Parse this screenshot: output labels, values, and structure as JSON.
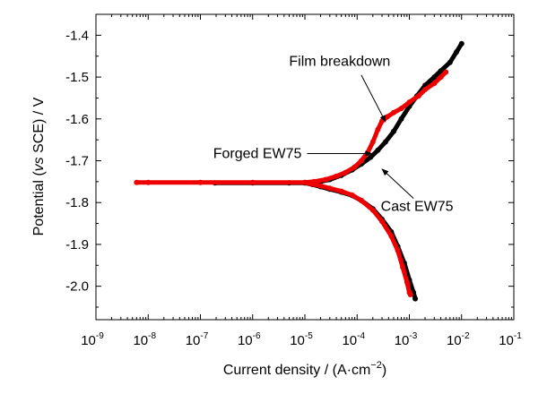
{
  "chart_data": {
    "type": "line",
    "x_scale": "log",
    "xlabel_main": "Current density / (A·cm",
    "xlabel_sup": "−2",
    "xlabel_end": ")",
    "ylabel_pre": "Potential (",
    "ylabel_ital": "vs",
    "ylabel_post": " SCE) / V",
    "xlim": [
      1e-09,
      0.1
    ],
    "ylim": [
      -2.08,
      -1.35
    ],
    "x_ticks": [
      {
        "exp": -9,
        "base": "10",
        "sup": "-9"
      },
      {
        "exp": -8,
        "base": "10",
        "sup": "-8"
      },
      {
        "exp": -7,
        "base": "10",
        "sup": "-7"
      },
      {
        "exp": -6,
        "base": "10",
        "sup": "-6"
      },
      {
        "exp": -5,
        "base": "10",
        "sup": "-5"
      },
      {
        "exp": -4,
        "base": "10",
        "sup": "-4"
      },
      {
        "exp": -3,
        "base": "10",
        "sup": "-3"
      },
      {
        "exp": -2,
        "base": "10",
        "sup": "-2"
      },
      {
        "exp": -1,
        "base": "10",
        "sup": "-1"
      }
    ],
    "y_ticks": [
      {
        "value": -1.4,
        "label": "-1.4"
      },
      {
        "value": -1.5,
        "label": "-1.5"
      },
      {
        "value": -1.6,
        "label": "-1.6"
      },
      {
        "value": -1.7,
        "label": "-1.7"
      },
      {
        "value": -1.8,
        "label": "-1.8"
      },
      {
        "value": -1.9,
        "label": "-1.9"
      },
      {
        "value": -2.0,
        "label": "-2.0"
      }
    ],
    "series": [
      {
        "name": "Cast EW75",
        "color": "#000000",
        "points": [
          [
            1.9e-07,
            -1.753
          ],
          [
            1e-06,
            -1.753
          ],
          [
            5e-06,
            -1.753
          ],
          [
            1e-05,
            -1.753
          ],
          [
            1.4e-05,
            -1.752
          ],
          [
            2e-05,
            -1.75
          ],
          [
            3e-05,
            -1.745
          ],
          [
            5e-05,
            -1.735
          ],
          [
            8e-05,
            -1.722
          ],
          [
            0.00012,
            -1.708
          ],
          [
            0.00018,
            -1.692
          ],
          [
            0.00025,
            -1.675
          ],
          [
            0.00035,
            -1.655
          ],
          [
            0.0005,
            -1.63
          ],
          [
            0.0007,
            -1.6
          ],
          [
            0.001,
            -1.57
          ],
          [
            0.0014,
            -1.545
          ],
          [
            0.002,
            -1.52
          ],
          [
            0.003,
            -1.5
          ],
          [
            0.004,
            -1.485
          ],
          [
            0.006,
            -1.465
          ],
          [
            0.008,
            -1.44
          ],
          [
            0.01,
            -1.42
          ]
        ],
        "cathodic_points": [
          [
            1e-05,
            -1.753
          ],
          [
            1.4e-05,
            -1.757
          ],
          [
            2e-05,
            -1.762
          ],
          [
            3e-05,
            -1.768
          ],
          [
            5e-05,
            -1.775
          ],
          [
            8e-05,
            -1.783
          ],
          [
            0.00012,
            -1.795
          ],
          [
            0.0002,
            -1.815
          ],
          [
            0.0003,
            -1.84
          ],
          [
            0.00045,
            -1.87
          ],
          [
            0.0006,
            -1.905
          ],
          [
            0.0008,
            -1.945
          ],
          [
            0.001,
            -1.985
          ],
          [
            0.0012,
            -2.015
          ],
          [
            0.0013,
            -2.03
          ]
        ]
      },
      {
        "name": "Forged EW75",
        "color": "#ee0000",
        "points": [
          [
            6e-09,
            -1.752
          ],
          [
            1e-08,
            -1.752
          ],
          [
            1e-07,
            -1.752
          ],
          [
            1e-06,
            -1.752
          ],
          [
            1e-05,
            -1.752
          ],
          [
            1.5e-05,
            -1.75
          ],
          [
            2.5e-05,
            -1.745
          ],
          [
            4e-05,
            -1.737
          ],
          [
            6e-05,
            -1.728
          ],
          [
            9e-05,
            -1.715
          ],
          [
            0.00012,
            -1.7
          ],
          [
            0.00016,
            -1.68
          ],
          [
            0.0002,
            -1.655
          ],
          [
            0.00025,
            -1.625
          ],
          [
            0.0003,
            -1.605
          ],
          [
            0.00038,
            -1.595
          ],
          [
            0.0005,
            -1.585
          ],
          [
            0.0007,
            -1.575
          ],
          [
            0.001,
            -1.56
          ],
          [
            0.0015,
            -1.545
          ],
          [
            0.002,
            -1.53
          ],
          [
            0.003,
            -1.515
          ],
          [
            0.004,
            -1.5
          ],
          [
            0.005,
            -1.488
          ]
        ],
        "cathodic_points": [
          [
            1e-05,
            -1.752
          ],
          [
            1.4e-05,
            -1.756
          ],
          [
            2e-05,
            -1.76
          ],
          [
            3e-05,
            -1.766
          ],
          [
            5e-05,
            -1.773
          ],
          [
            8e-05,
            -1.782
          ],
          [
            0.00012,
            -1.795
          ],
          [
            0.0002,
            -1.818
          ],
          [
            0.0003,
            -1.845
          ],
          [
            0.00045,
            -1.88
          ],
          [
            0.0006,
            -1.915
          ],
          [
            0.00075,
            -1.955
          ],
          [
            0.0009,
            -1.99
          ],
          [
            0.001,
            -2.015
          ],
          [
            0.00105,
            -2.02
          ]
        ]
      }
    ],
    "annotations": [
      {
        "text": "Film breakdown",
        "at": [
          0.00035,
          -1.607
        ],
        "from": [
          0.00012,
          -1.495
        ]
      },
      {
        "text": "Forged EW75",
        "at": [
          0.00019,
          -1.683
        ],
        "from": [
          1.1e-05,
          -1.683
        ]
      },
      {
        "text": "Cast EW75",
        "at": [
          0.0003,
          -1.72
        ],
        "from": [
          0.0012,
          -1.79
        ]
      }
    ],
    "grid": false,
    "legend": "none"
  }
}
